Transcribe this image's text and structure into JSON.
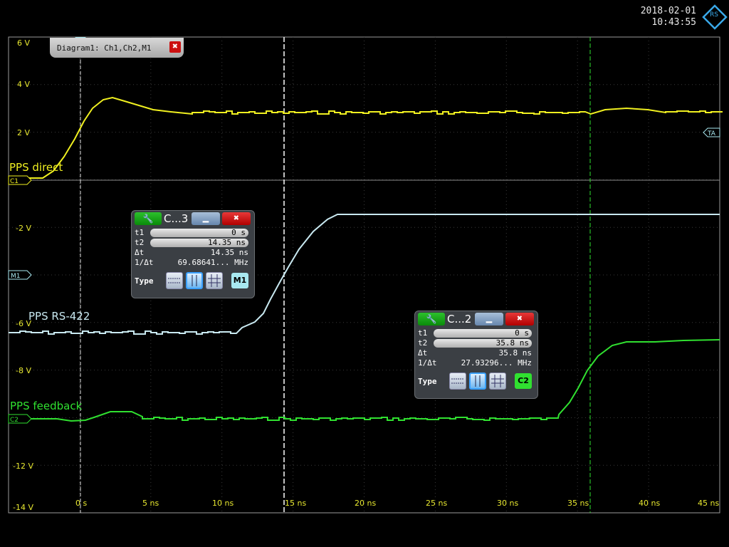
{
  "header": {
    "date": "2018-02-01",
    "time": "10:43:55"
  },
  "logo": {
    "text": "RS"
  },
  "diagram_tab": {
    "title": "Diagram1: Ch1,Ch2,M1",
    "close": "✖"
  },
  "y_axis_labels": [
    "6 V",
    "4 V",
    "2 V",
    "-2 V",
    "-6 V",
    "-8 V",
    "-12 V",
    "-14 V"
  ],
  "x_axis_labels": [
    "0 s",
    "5 ns",
    "10 ns",
    "15 ns",
    "20 ns",
    "25 ns",
    "30 ns",
    "35 ns",
    "40 ns",
    "45 ns"
  ],
  "channel_markers": {
    "c1": "C1",
    "m1": "M1",
    "c2": "C2",
    "ta": "TA"
  },
  "traces": {
    "pps_direct": {
      "label": "PPS direct",
      "color": "#f0f020"
    },
    "pps_rs422": {
      "label": "PPS RS-422",
      "color": "#c8e8f0"
    },
    "pps_feedback": {
      "label": "PPS feedback",
      "color": "#30e030"
    }
  },
  "cursor1": {
    "title": "C...3",
    "min": "▁",
    "close": "✖",
    "t1_label": "t1",
    "t1": "0 s",
    "t2_label": "t2",
    "t2": "14.35 ns",
    "dt_label": "Δt",
    "dt": "14.35 ns",
    "inv_label": "1/Δt",
    "inv": "69.68641... MHz",
    "type_label": "Type",
    "source": "M1",
    "source_color": "#a8e8f0"
  },
  "cursor2": {
    "title": "C...2",
    "min": "▁",
    "close": "✖",
    "t1_label": "t1",
    "t1": "0 s",
    "t2_label": "t2",
    "t2": "35.8 ns",
    "dt_label": "Δt",
    "dt": "35.8 ns",
    "inv_label": "1/Δt",
    "inv": "27.93296... MHz",
    "type_label": "Type",
    "source": "C2",
    "source_color": "#30e030"
  }
}
